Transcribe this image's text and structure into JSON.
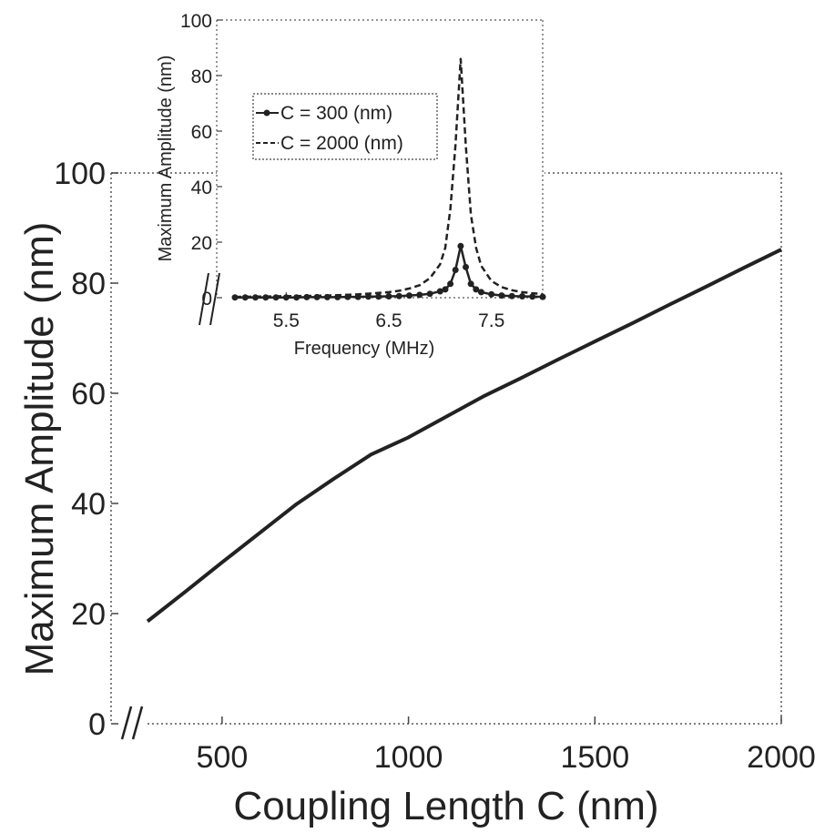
{
  "chart_data": [
    {
      "type": "line",
      "xlabel": "Coupling Length C (nm)",
      "ylabel": "Maximum Amplitude (nm)",
      "xlim": [
        300,
        2000
      ],
      "ylim": [
        0,
        100
      ],
      "xticks": [
        500,
        1000,
        1500,
        2000
      ],
      "yticks": [
        0,
        20,
        40,
        60,
        80,
        100
      ],
      "grid": false,
      "axis_break_marks": true,
      "series": [
        {
          "x": [
            300,
            400,
            500,
            600,
            700,
            800,
            900,
            1000,
            1100,
            1200,
            1300,
            1400,
            1500,
            1600,
            1700,
            1800,
            1900,
            2000
          ],
          "values": [
            18.6,
            23.9,
            29.3,
            34.6,
            39.9,
            44.5,
            48.9,
            52.0,
            55.7,
            59.4,
            62.7,
            66.1,
            69.4,
            72.7,
            76.1,
            79.4,
            82.8,
            86.1
          ]
        }
      ],
      "color": "#222222"
    },
    {
      "type": "line",
      "position": "inset top-left",
      "xlabel": "Frequency (MHz)",
      "ylabel": "Maximum Amplitude (nm)",
      "xlim": [
        5.0,
        8.0
      ],
      "ylim": [
        0,
        100
      ],
      "xticks": [
        "5.5",
        "6.5",
        "7.5"
      ],
      "yticks": [
        0,
        20,
        40,
        60,
        80,
        100
      ],
      "grid": false,
      "legend_placement": "upper-left",
      "series": [
        {
          "name": "C = 300 (nm)",
          "style": "solid with dot markers",
          "x": [
            5.0,
            5.1,
            5.2,
            5.3,
            5.4,
            5.5,
            5.6,
            5.7,
            5.8,
            5.9,
            6.0,
            6.1,
            6.2,
            6.3,
            6.4,
            6.5,
            6.6,
            6.7,
            6.8,
            6.9,
            7.0,
            7.05,
            7.1,
            7.15,
            7.2,
            7.25,
            7.3,
            7.35,
            7.4,
            7.5,
            7.6,
            7.7,
            7.8,
            7.9,
            8.0
          ],
          "values": [
            0.1,
            0.1,
            0.1,
            0.1,
            0.1,
            0.1,
            0.1,
            0.2,
            0.2,
            0.2,
            0.2,
            0.3,
            0.3,
            0.4,
            0.4,
            0.5,
            0.6,
            0.8,
            1.0,
            1.4,
            2.3,
            3.0,
            5.0,
            10.0,
            18.6,
            11.0,
            5.0,
            3.0,
            2.0,
            1.2,
            0.8,
            0.6,
            0.5,
            0.4,
            0.3
          ]
        },
        {
          "name": "C = 2000 (nm)",
          "style": "dashed",
          "x": [
            5.0,
            5.2,
            5.4,
            5.6,
            5.8,
            6.0,
            6.2,
            6.4,
            6.5,
            6.6,
            6.7,
            6.8,
            6.9,
            7.0,
            7.05,
            7.1,
            7.15,
            7.2,
            7.25,
            7.3,
            7.35,
            7.4,
            7.5,
            7.6,
            7.7,
            7.8,
            7.9,
            8.0
          ],
          "values": [
            0.3,
            0.4,
            0.5,
            0.6,
            0.7,
            0.9,
            1.2,
            1.7,
            2.0,
            2.5,
            3.3,
            4.5,
            7.0,
            12.0,
            18.0,
            32.0,
            55.0,
            86.0,
            55.0,
            30.0,
            18.0,
            11.5,
            6.0,
            3.8,
            2.7,
            2.0,
            1.6,
            1.3
          ]
        }
      ],
      "color": "#222222"
    }
  ]
}
